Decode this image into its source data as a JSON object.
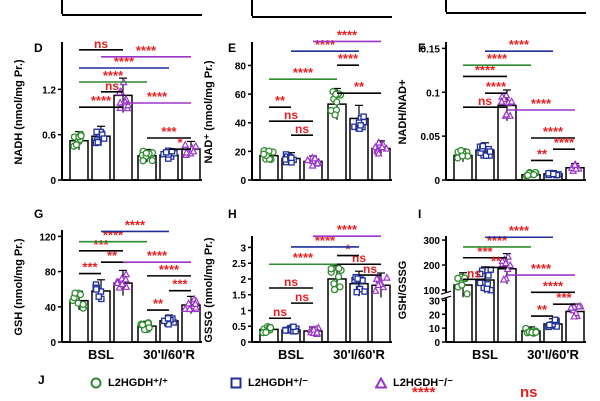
{
  "figure": {
    "colors": {
      "wt": "#2e8b2e",
      "het": "#1f2f9a",
      "ko": "#9b35c9",
      "sig_red": "#e62020",
      "sig_ns": "#e62020"
    },
    "legend": [
      {
        "label": "L2HGDH⁺/⁺",
        "group": "wt",
        "marker": "circle"
      },
      {
        "label": "L2HGDH⁺/⁻",
        "group": "het",
        "marker": "square"
      },
      {
        "label": "L2HGDH⁻/⁻",
        "group": "ko",
        "marker": "triangle"
      }
    ],
    "panel_j_label": "J",
    "panel_j_sig": [
      "****",
      "ns"
    ]
  },
  "chart_data": [
    {
      "type": "bar",
      "panel": "D",
      "ylabel": "NADH (nmol/mg Pr.)",
      "ylim": [
        0,
        1.8
      ],
      "yticks": [
        0,
        0.6,
        1.2
      ],
      "categories": [
        "BSL",
        "30'I/60'R"
      ],
      "show_xticks": false,
      "series": [
        {
          "name": "L2HGDH+/+",
          "group": "wt",
          "values": [
            0.52,
            0.32
          ]
        },
        {
          "name": "L2HGDH+/-",
          "group": "het",
          "values": [
            0.58,
            0.33
          ]
        },
        {
          "name": "L2HGDH-/-",
          "group": "ko",
          "values": [
            1.12,
            0.41
          ]
        }
      ],
      "brackets": [
        {
          "from": 0,
          "to": 2,
          "level": 0.93,
          "label": "ns",
          "color": "sig_ns"
        },
        {
          "from": 1,
          "to": 2,
          "level": 0.63,
          "label": "ns",
          "color": "sig_ns"
        },
        {
          "from": 0,
          "to": 2,
          "level": 0.52,
          "label": "****",
          "color": "sig_red"
        },
        {
          "from": 3,
          "to": 5,
          "level": 0.3,
          "label": "***",
          "color": "sig_red"
        },
        {
          "from": 4,
          "to": 5,
          "level": 0.22,
          "label": "*",
          "color": "sig_red"
        },
        {
          "from": 2,
          "to": 5,
          "level": 0.55,
          "label": "****",
          "color": "sig_red",
          "line": "ko"
        },
        {
          "from": 0,
          "to": 3,
          "level": 0.7,
          "label": "****",
          "color": "sig_red",
          "line": "wt"
        },
        {
          "from": 0,
          "to": 4,
          "level": 0.8,
          "label": "****",
          "color": "sig_red",
          "line": "het"
        },
        {
          "from": 1,
          "to": 5,
          "level": 0.88,
          "label": "****",
          "color": "sig_red",
          "line": "ko"
        }
      ]
    },
    {
      "type": "bar",
      "panel": "E",
      "ylabel": "NAD⁺ (nmol/mg Pr.)",
      "ylim": [
        0,
        95
      ],
      "yticks": [
        0,
        20,
        40,
        60,
        80
      ],
      "categories": [
        "BSL",
        "30'I/60'R"
      ],
      "show_xticks": false,
      "series": [
        {
          "name": "L2HGDH+/+",
          "group": "wt",
          "values": [
            17,
            53
          ]
        },
        {
          "name": "L2HGDH+/-",
          "group": "het",
          "values": [
            15,
            43
          ]
        },
        {
          "name": "L2HGDH-/-",
          "group": "ko",
          "values": [
            13,
            22
          ]
        }
      ],
      "brackets": [
        {
          "from": 0,
          "to": 2,
          "level": 0.42,
          "label": "ns",
          "color": "sig_ns"
        },
        {
          "from": 1,
          "to": 2,
          "level": 0.32,
          "label": "ns",
          "color": "sig_ns"
        },
        {
          "from": 0,
          "to": 1,
          "level": 0.52,
          "label": "**",
          "color": "sig_red"
        },
        {
          "from": 3,
          "to": 5,
          "level": 0.62,
          "label": "**",
          "color": "sig_red"
        },
        {
          "from": 3,
          "to": 4,
          "level": 0.82,
          "label": "****",
          "color": "sig_red"
        },
        {
          "from": 0,
          "to": 3,
          "level": 0.72,
          "label": "****",
          "color": "sig_red",
          "line": "wt"
        },
        {
          "from": 1,
          "to": 4,
          "level": 0.92,
          "label": "****",
          "color": "sig_red",
          "line": "het"
        },
        {
          "from": 2,
          "to": 5,
          "level": 0.99,
          "label": "****",
          "color": "sig_red",
          "line": "ko"
        }
      ]
    },
    {
      "type": "bar",
      "panel": "F",
      "ylabel": "NADH/NAD+",
      "ylim": [
        0,
        0.155
      ],
      "yticks": [
        0,
        0.05,
        0.1,
        0.15
      ],
      "categories": [
        "BSL",
        "30'I/60'R"
      ],
      "show_xticks": false,
      "series": [
        {
          "name": "L2HGDH+/+",
          "group": "wt",
          "values": [
            0.028,
            0.006
          ]
        },
        {
          "name": "L2HGDH+/-",
          "group": "het",
          "values": [
            0.034,
            0.007
          ]
        },
        {
          "name": "L2HGDH-/-",
          "group": "ko",
          "values": [
            0.085,
            0.014
          ]
        }
      ],
      "brackets": [
        {
          "from": 0,
          "to": 2,
          "level": 0.52,
          "label": "ns",
          "color": "sig_ns"
        },
        {
          "from": 1,
          "to": 2,
          "level": 0.62,
          "label": "****",
          "color": "sig_red"
        },
        {
          "from": 3,
          "to": 5,
          "level": 0.3,
          "label": "****",
          "color": "sig_red"
        },
        {
          "from": 3,
          "to": 4,
          "level": 0.14,
          "label": "**",
          "color": "sig_red"
        },
        {
          "from": 4,
          "to": 5,
          "level": 0.22,
          "label": "****",
          "color": "sig_red"
        },
        {
          "from": 2,
          "to": 5,
          "level": 0.5,
          "label": "****",
          "color": "sig_red",
          "line": "ko"
        },
        {
          "from": 0,
          "to": 2,
          "level": 0.74,
          "label": "****",
          "color": "sig_red"
        },
        {
          "from": 0,
          "to": 3,
          "level": 0.82,
          "label": "****",
          "color": "sig_red",
          "line": "wt"
        },
        {
          "from": 1,
          "to": 4,
          "level": 0.92,
          "label": "****",
          "color": "sig_red",
          "line": "het"
        }
      ]
    },
    {
      "type": "bar",
      "panel": "G",
      "ylabel": "GSH (nmol/mg Pr.)",
      "ylim": [
        0,
        125
      ],
      "yticks": [
        0,
        40,
        80,
        120
      ],
      "categories": [
        "BSL",
        "30'I/60'R"
      ],
      "show_xticks": true,
      "series": [
        {
          "name": "L2HGDH+/+",
          "group": "wt",
          "values": [
            47,
            18
          ]
        },
        {
          "name": "L2HGDH+/-",
          "group": "het",
          "values": [
            58,
            24
          ]
        },
        {
          "name": "L2HGDH-/-",
          "group": "ko",
          "values": [
            67,
            42
          ]
        }
      ],
      "brackets": [
        {
          "from": 0,
          "to": 1,
          "level": 0.6,
          "label": "***",
          "color": "sig_red"
        },
        {
          "from": 1,
          "to": 2,
          "level": 0.7,
          "label": "**",
          "color": "sig_red"
        },
        {
          "from": 0,
          "to": 2,
          "level": 0.8,
          "label": "***",
          "color": "sig_red"
        },
        {
          "from": 3,
          "to": 4,
          "level": 0.28,
          "label": "**",
          "color": "sig_red"
        },
        {
          "from": 4,
          "to": 5,
          "level": 0.45,
          "label": "***",
          "color": "sig_red"
        },
        {
          "from": 3,
          "to": 5,
          "level": 0.58,
          "label": "****",
          "color": "sig_red"
        },
        {
          "from": 2,
          "to": 5,
          "level": 0.7,
          "label": "****",
          "color": "sig_red",
          "line": "ko"
        },
        {
          "from": 0,
          "to": 3,
          "level": 0.88,
          "label": "****",
          "color": "sig_red",
          "line": "wt"
        },
        {
          "from": 1,
          "to": 4,
          "level": 0.97,
          "label": "****",
          "color": "sig_red",
          "line": "het"
        }
      ]
    },
    {
      "type": "bar",
      "panel": "H",
      "ylabel": "GSSG (nmol/mg Pr.)",
      "ylim": [
        0,
        3.3
      ],
      "yticks": [
        0,
        0.5,
        1.0,
        1.5,
        2.0,
        2.5,
        3.0
      ],
      "categories": [
        "BSL",
        "30'I/60'R"
      ],
      "show_xticks": true,
      "series": [
        {
          "name": "L2HGDH+/+",
          "group": "wt",
          "values": [
            0.4,
            2.0
          ]
        },
        {
          "name": "L2HGDH+/-",
          "group": "het",
          "values": [
            0.38,
            1.85
          ]
        },
        {
          "name": "L2HGDH-/-",
          "group": "ko",
          "values": [
            0.35,
            1.8
          ]
        }
      ],
      "brackets": [
        {
          "from": 0,
          "to": 2,
          "level": 0.5,
          "label": "ns",
          "color": "sig_ns"
        },
        {
          "from": 1,
          "to": 2,
          "level": 0.36,
          "label": "ns",
          "color": "sig_ns"
        },
        {
          "from": 0,
          "to": 1,
          "level": 0.22,
          "label": "ns",
          "color": "sig_ns"
        },
        {
          "from": 3,
          "to": 5,
          "level": 0.72,
          "label": "ns",
          "color": "sig_ns"
        },
        {
          "from": 4,
          "to": 5,
          "level": 0.62,
          "label": "ns",
          "color": "sig_ns"
        },
        {
          "from": 3,
          "to": 4,
          "level": 0.8,
          "label": "*",
          "color": "sig_red"
        },
        {
          "from": 0,
          "to": 3,
          "level": 0.72,
          "label": "****",
          "color": "sig_red",
          "line": "wt"
        },
        {
          "from": 1,
          "to": 4,
          "level": 0.88,
          "label": "****",
          "color": "sig_red",
          "line": "het"
        },
        {
          "from": 2,
          "to": 5,
          "level": 0.98,
          "label": "****",
          "color": "sig_red",
          "line": "ko"
        }
      ]
    },
    {
      "type": "bar",
      "panel": "I",
      "ylabel": "GSH/GSSG",
      "ylim": [
        0,
        310
      ],
      "yticks": [
        0,
        10,
        20,
        30,
        100,
        200,
        300
      ],
      "categories": [
        "BSL",
        "30'I/60'R"
      ],
      "show_xticks": true,
      "broken_axis": true,
      "series": [
        {
          "name": "L2HGDH+/+",
          "group": "wt",
          "values": [
            120,
            8
          ]
        },
        {
          "name": "L2HGDH+/-",
          "group": "het",
          "values": [
            140,
            13
          ]
        },
        {
          "name": "L2HGDH-/-",
          "group": "ko",
          "values": [
            185,
            22
          ]
        }
      ],
      "brackets": [
        {
          "from": 0,
          "to": 2,
          "level": 0.78,
          "label": "***",
          "color": "sig_red"
        },
        {
          "from": 1,
          "to": 2,
          "level": 0.69,
          "label": "**",
          "color": "sig_red"
        },
        {
          "from": 0,
          "to": 1,
          "level": 0.58,
          "label": "ns",
          "color": "sig_ns"
        },
        {
          "from": 3,
          "to": 4,
          "level": 0.24,
          "label": "**",
          "color": "sig_red"
        },
        {
          "from": 4,
          "to": 5,
          "level": 0.35,
          "label": "***",
          "color": "sig_red"
        },
        {
          "from": 3,
          "to": 5,
          "level": 0.46,
          "label": "****",
          "color": "sig_red"
        },
        {
          "from": 2,
          "to": 5,
          "level": 0.62,
          "label": "****",
          "color": "sig_red",
          "line": "ko"
        },
        {
          "from": 0,
          "to": 3,
          "level": 0.88,
          "label": "****",
          "color": "sig_red",
          "line": "wt"
        },
        {
          "from": 1,
          "to": 4,
          "level": 0.97,
          "label": "****",
          "color": "sig_red",
          "line": "het"
        }
      ]
    }
  ]
}
